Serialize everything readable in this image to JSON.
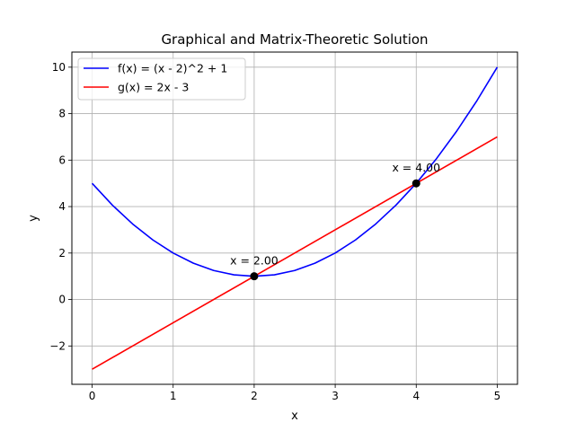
{
  "chart_data": {
    "type": "line",
    "title": "Graphical and Matrix-Theoretic Solution",
    "xlabel": "x",
    "ylabel": "y",
    "xlim": [
      -0.25,
      5.25
    ],
    "ylim": [
      -3.65,
      10.65
    ],
    "xticks": [
      0,
      1,
      2,
      3,
      4,
      5
    ],
    "yticks": [
      -2,
      0,
      2,
      4,
      6,
      8,
      10
    ],
    "grid": true,
    "legend_position": "top-left",
    "series": [
      {
        "name": "f(x) = (x - 2)^2 + 1",
        "color": "#0000ff",
        "x": [
          0,
          0.25,
          0.5,
          0.75,
          1,
          1.25,
          1.5,
          1.75,
          2,
          2.25,
          2.5,
          2.75,
          3,
          3.25,
          3.5,
          3.75,
          4,
          4.25,
          4.5,
          4.75,
          5
        ],
        "y": [
          5,
          4.0625,
          3.25,
          2.5625,
          2,
          1.5625,
          1.25,
          1.0625,
          1,
          1.0625,
          1.25,
          1.5625,
          2,
          2.5625,
          3.25,
          4.0625,
          5,
          6.0625,
          7.25,
          8.5625,
          10
        ]
      },
      {
        "name": "g(x) = 2x - 3",
        "color": "#ff0000",
        "x": [
          0,
          5
        ],
        "y": [
          -3,
          7
        ]
      }
    ],
    "points": [
      {
        "x": 2,
        "y": 1,
        "label": "x = 2.00"
      },
      {
        "x": 4,
        "y": 5,
        "label": "x = 4.00"
      }
    ]
  }
}
